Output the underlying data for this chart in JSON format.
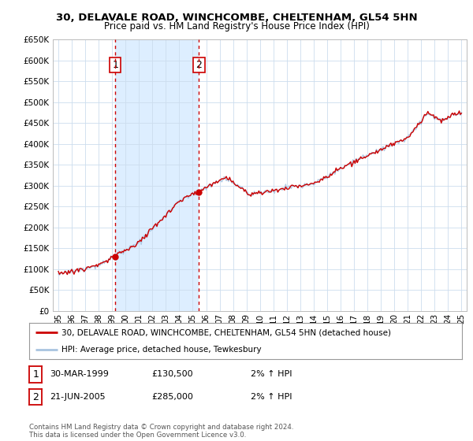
{
  "title": "30, DELAVALE ROAD, WINCHCOMBE, CHELTENHAM, GL54 5HN",
  "subtitle": "Price paid vs. HM Land Registry's House Price Index (HPI)",
  "ylim": [
    0,
    650000
  ],
  "yticks": [
    0,
    50000,
    100000,
    150000,
    200000,
    250000,
    300000,
    350000,
    400000,
    450000,
    500000,
    550000,
    600000,
    650000
  ],
  "ytick_labels": [
    "£0",
    "£50K",
    "£100K",
    "£150K",
    "£200K",
    "£250K",
    "£300K",
    "£350K",
    "£400K",
    "£450K",
    "£500K",
    "£550K",
    "£600K",
    "£650K"
  ],
  "hpi_color": "#a8c4e0",
  "price_color": "#cc0000",
  "marker_color": "#cc0000",
  "point1_year": 1999.23,
  "point1_value": 130500,
  "point2_year": 2005.47,
  "point2_value": 285000,
  "legend_label1": "30, DELAVALE ROAD, WINCHCOMBE, CHELTENHAM, GL54 5HN (detached house)",
  "legend_label2": "HPI: Average price, detached house, Tewkesbury",
  "table_rows": [
    {
      "num": "1",
      "date": "30-MAR-1999",
      "price": "£130,500",
      "hpi": "2% ↑ HPI"
    },
    {
      "num": "2",
      "date": "21-JUN-2005",
      "price": "£285,000",
      "hpi": "2% ↑ HPI"
    }
  ],
  "footer": "Contains HM Land Registry data © Crown copyright and database right 2024.\nThis data is licensed under the Open Government Licence v3.0.",
  "vline_color": "#cc0000",
  "grid_color": "#ccddee",
  "shade_color": "#ddeeff",
  "plot_bg_color": "#ffffff",
  "title_fontsize": 9.5,
  "subtitle_fontsize": 8.5
}
